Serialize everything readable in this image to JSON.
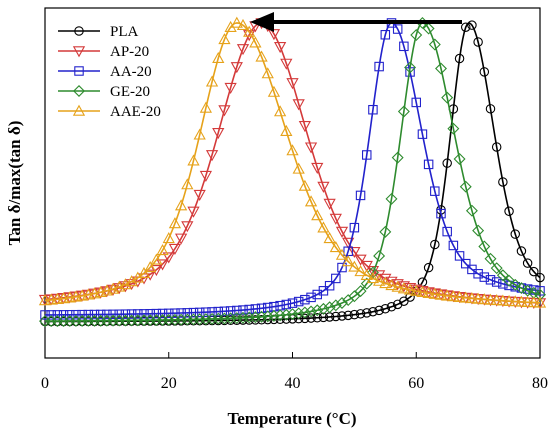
{
  "chart_data": {
    "type": "line",
    "xlabel": "Temperature (°C)",
    "ylabel": "Tan δ/max(tan δ)",
    "xlim": [
      0,
      80
    ],
    "ylim": [
      -0.12,
      1.05
    ],
    "x_ticks": [
      "0",
      "20",
      "40",
      "60",
      "80"
    ],
    "grid": false,
    "legend_position": "top-left",
    "annotation": "arrow pointing left (peak shift toward lower temperature)",
    "series": [
      {
        "name": "PLA",
        "color": "#000000",
        "marker": "circle",
        "baseline": 0.0,
        "end": 0.05,
        "peak_x": 68.5,
        "peak_y": 1.0,
        "sigma_left": 2.8,
        "sigma_right": 3.8
      },
      {
        "name": "AP-20",
        "color": "#d43a3a",
        "marker": "triangle-down",
        "baseline": 0.04,
        "end": 0.04,
        "peak_x": 35.0,
        "peak_y": 1.0,
        "sigma_left": 6.5,
        "sigma_right": 6.8
      },
      {
        "name": "AA-20",
        "color": "#2222cc",
        "marker": "square",
        "baseline": 0.02,
        "end": 0.07,
        "peak_x": 56.0,
        "peak_y": 1.0,
        "sigma_left": 3.3,
        "sigma_right": 4.5
      },
      {
        "name": "GE-20",
        "color": "#2e8b2e",
        "marker": "diamond",
        "baseline": 0.0,
        "end": 0.03,
        "peak_x": 61.0,
        "peak_y": 1.0,
        "sigma_left": 3.3,
        "sigma_right": 4.8
      },
      {
        "name": "AAE-20",
        "color": "#e6a21a",
        "marker": "triangle-up",
        "baseline": 0.04,
        "end": 0.04,
        "peak_x": 31.0,
        "peak_y": 1.0,
        "sigma_left": 5.5,
        "sigma_right": 7.5
      }
    ]
  }
}
